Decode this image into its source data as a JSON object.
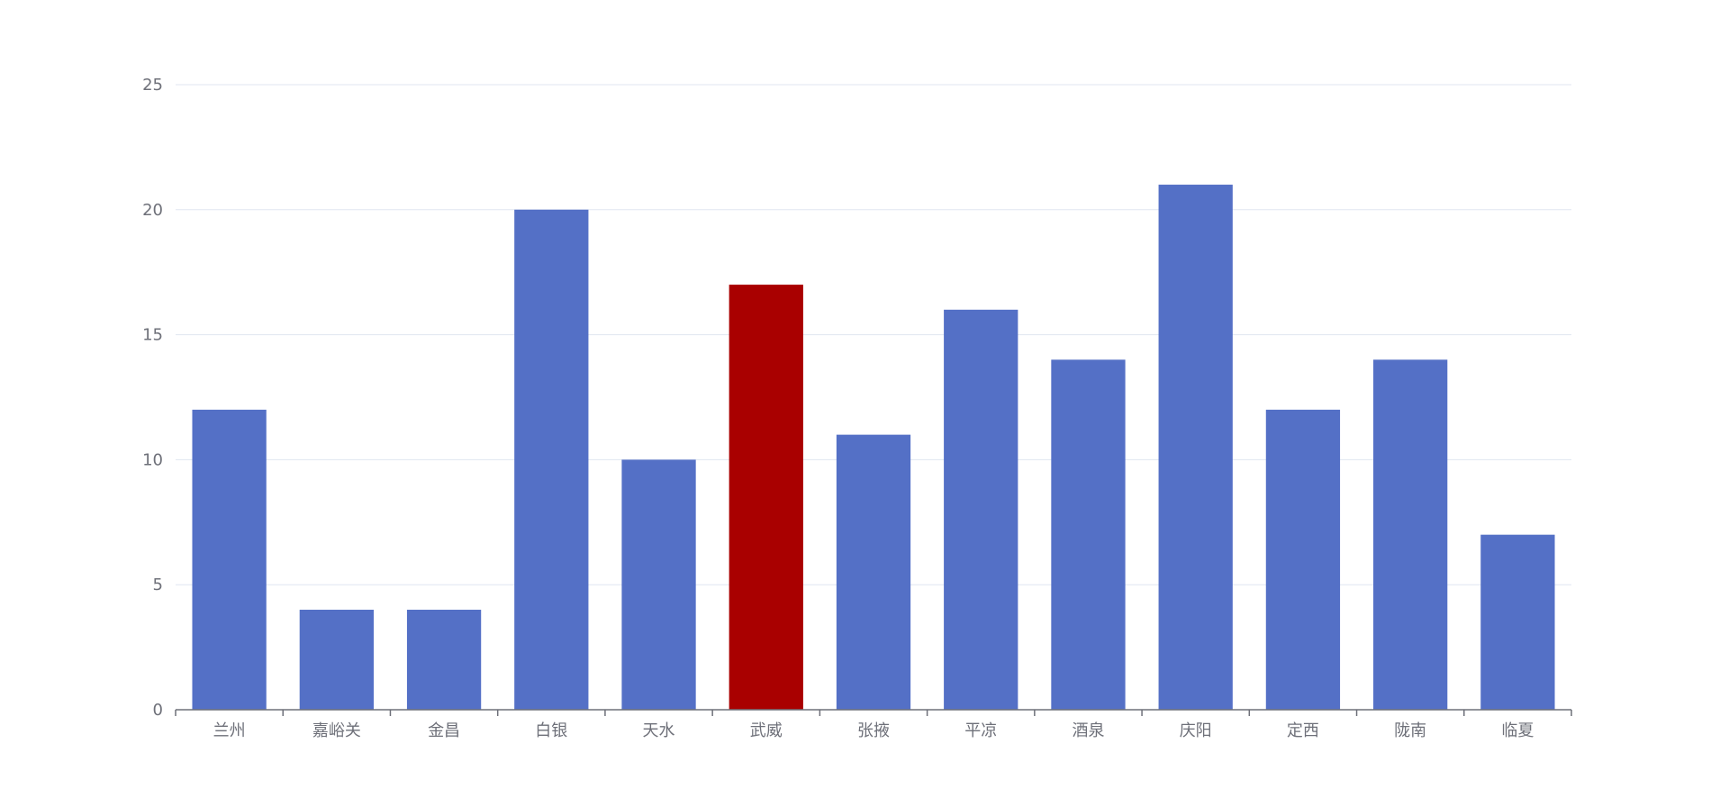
{
  "chart_data": {
    "type": "bar",
    "title": "",
    "xlabel": "",
    "ylabel": "",
    "categories": [
      "兰州",
      "嘉峪关",
      "金昌",
      "白银",
      "天水",
      "武威",
      "张掖",
      "平凉",
      "酒泉",
      "庆阳",
      "定西",
      "陇南",
      "临夏"
    ],
    "values": [
      12,
      4,
      4,
      20,
      10,
      17,
      11,
      16,
      14,
      21,
      12,
      14,
      7
    ],
    "highlight_index": 5,
    "ylim": [
      0,
      25
    ],
    "yticks": [
      0,
      5,
      10,
      15,
      20,
      25
    ],
    "grid": true,
    "legend": "none"
  },
  "colors": {
    "bar": "#5470c6",
    "highlight": "#a90000",
    "grid": "#e0e6f1",
    "axis": "#6e7079",
    "label": "#6e7079"
  }
}
